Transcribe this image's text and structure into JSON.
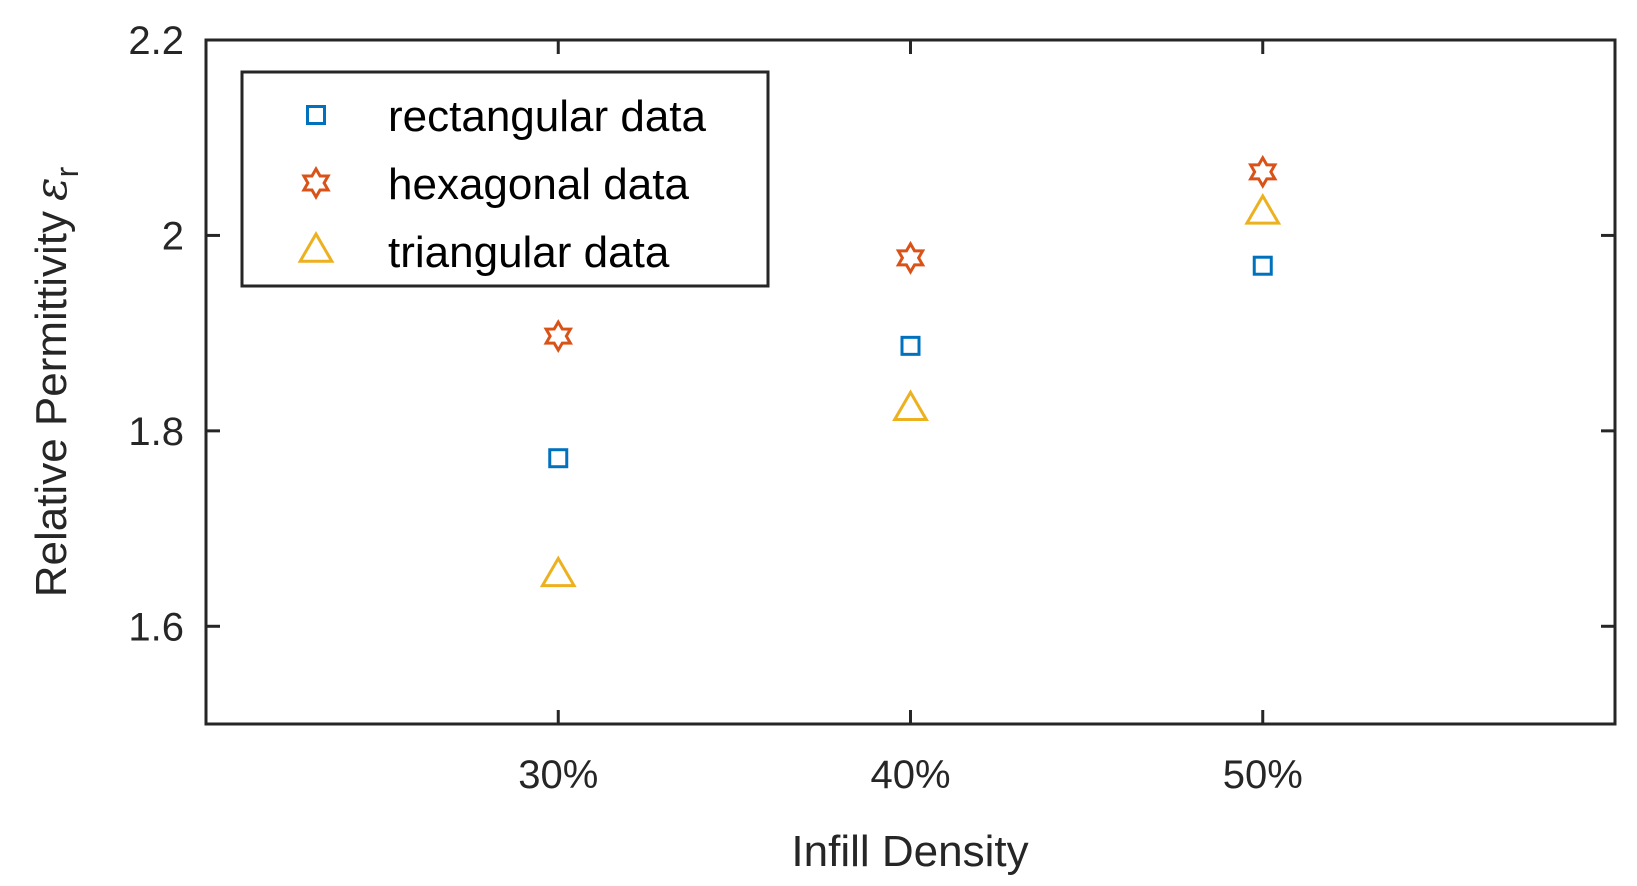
{
  "chart_data": {
    "type": "scatter",
    "title": "",
    "xlabel": "Infill Density",
    "ylabel": "Relative Permittivity",
    "ylabel_symbol": "ε",
    "ylabel_subscript": "r",
    "categories": [
      "30%",
      "40%",
      "50%"
    ],
    "x": [
      0.3,
      0.4,
      0.5
    ],
    "xlim": [
      0.2,
      0.6
    ],
    "ylim": [
      1.5,
      2.2
    ],
    "yticks": [
      1.6,
      1.8,
      2.0,
      2.2
    ],
    "ytick_labels": [
      "1.6",
      "1.8",
      "2",
      "2.2"
    ],
    "grid": false,
    "legend_position": "top-left",
    "series": [
      {
        "name": "rectangular data",
        "marker": "square",
        "color": "#0072BD",
        "values": [
          1.772,
          1.887,
          1.969
        ]
      },
      {
        "name": "hexagonal data",
        "marker": "hexagram",
        "color": "#D95319",
        "values": [
          1.897,
          1.977,
          2.065
        ]
      },
      {
        "name": "triangular data",
        "marker": "triangle",
        "color": "#EDB120",
        "values": [
          1.652,
          1.822,
          2.023
        ]
      }
    ]
  }
}
